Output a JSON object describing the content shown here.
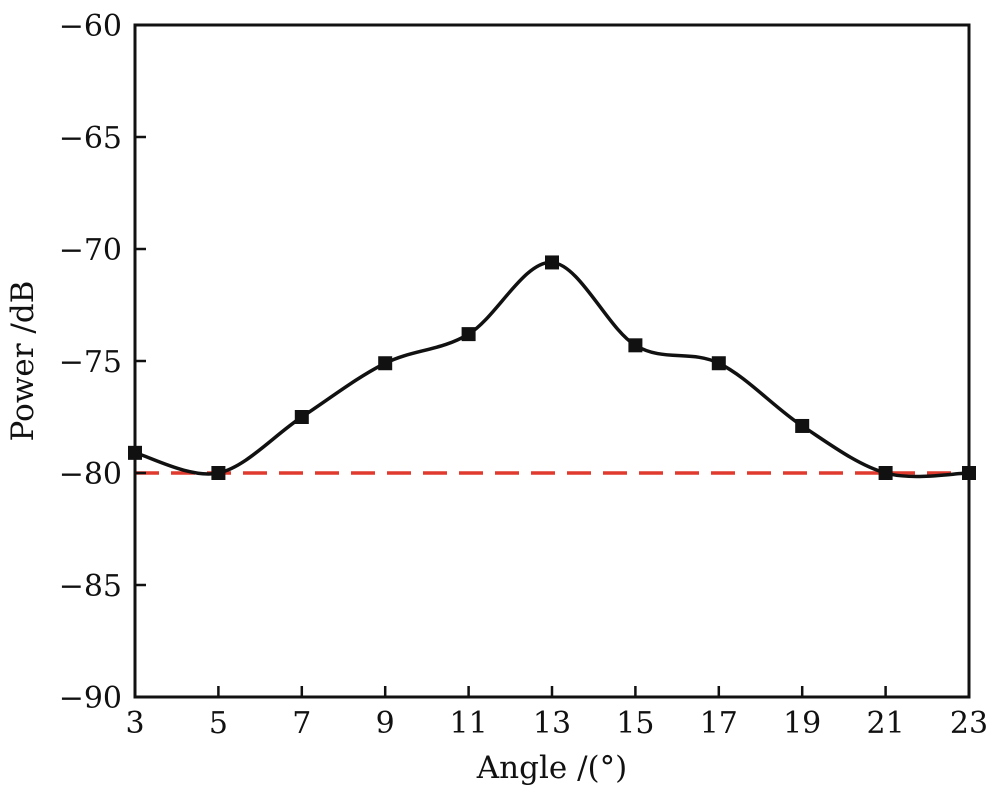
{
  "chart_data": {
    "type": "line",
    "title": "",
    "xlabel": "Angle /(°)",
    "ylabel": "Power /dB",
    "xlim": [
      3,
      23
    ],
    "ylim": [
      -90,
      -60
    ],
    "x_ticks": [
      3,
      5,
      7,
      9,
      11,
      13,
      15,
      17,
      19,
      21,
      23
    ],
    "x_tick_labels": [
      "3",
      "5",
      "7",
      "9",
      "11",
      "13",
      "15",
      "17",
      "19",
      "21",
      "23"
    ],
    "y_ticks": [
      -90,
      -85,
      -80,
      -75,
      -70,
      -65,
      -60
    ],
    "y_tick_labels": [
      "−90",
      "−85",
      "−80",
      "−75",
      "−70",
      "−65",
      "−60"
    ],
    "grid": false,
    "series": [
      {
        "color": "#111111",
        "marker": "square",
        "line_style": "smooth",
        "x": [
          3,
          5,
          7,
          9,
          11,
          13,
          15,
          17,
          19,
          21,
          23
        ],
        "y": [
          -79.1,
          -80.0,
          -77.5,
          -75.1,
          -73.8,
          -70.6,
          -74.3,
          -75.1,
          -77.9,
          -80.0,
          -80.0
        ]
      }
    ],
    "reference_lines": [
      {
        "orientation": "horizontal",
        "y": -80,
        "color": "#e03a2f",
        "style": "dashed"
      }
    ]
  }
}
